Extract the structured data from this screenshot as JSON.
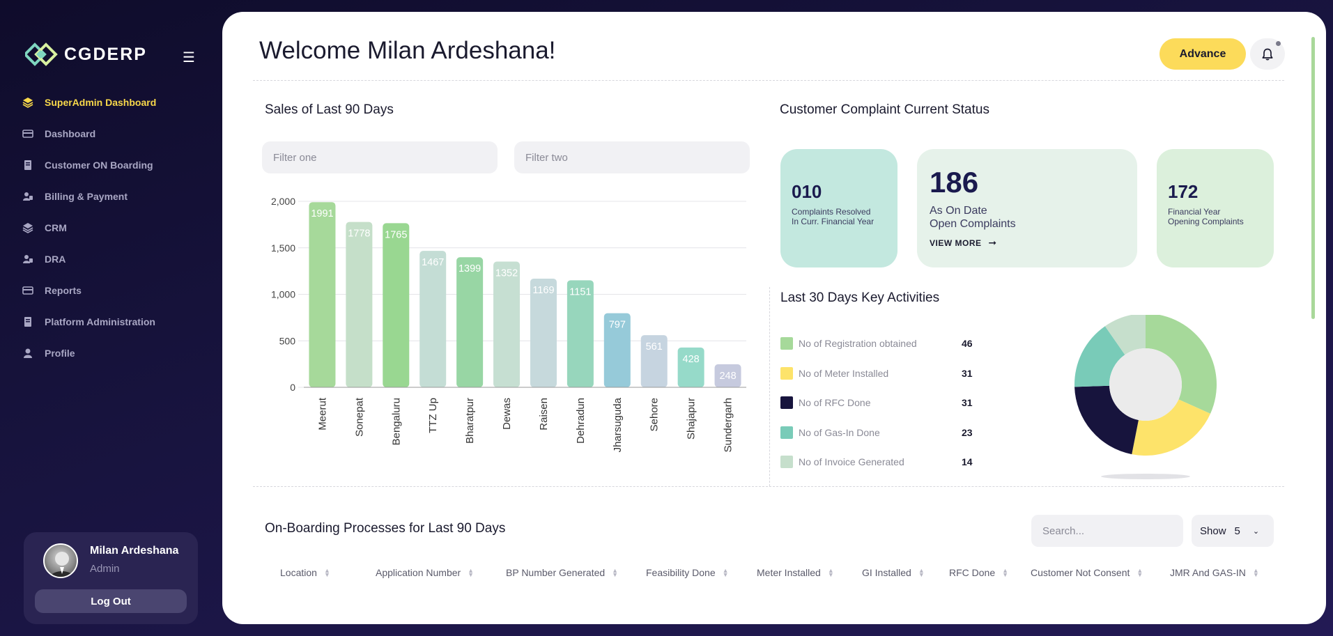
{
  "brand": {
    "name": "CGDERP"
  },
  "sidebar": {
    "items": [
      {
        "label": "SuperAdmin Dashboard",
        "icon": "layers-icon",
        "active": true
      },
      {
        "label": "Dashboard",
        "icon": "card-icon"
      },
      {
        "label": "Customer ON Boarding",
        "icon": "book-icon"
      },
      {
        "label": "Billing & Payment",
        "icon": "user-card-icon"
      },
      {
        "label": "CRM",
        "icon": "layers-icon"
      },
      {
        "label": "DRA",
        "icon": "user-card-icon"
      },
      {
        "label": "Reports",
        "icon": "card-icon"
      },
      {
        "label": "Platform Administration",
        "icon": "book-icon"
      },
      {
        "label": "Profile",
        "icon": "person-icon"
      }
    ]
  },
  "user": {
    "name": "Milan Ardeshana",
    "role": "Admin",
    "logout_label": "Log Out"
  },
  "header": {
    "welcome": "Welcome Milan Ardeshana!",
    "advance_label": "Advance"
  },
  "sales": {
    "title": "Sales of Last 90 Days",
    "filter_one_placeholder": "Filter one",
    "filter_two_placeholder": "Filter two"
  },
  "chart_data": {
    "type": "bar",
    "title": "Sales of Last 90 Days",
    "xlabel": "",
    "ylabel": "",
    "ylim": [
      0,
      2000
    ],
    "yticks": [
      "2,000",
      "1,500",
      "1,000",
      "500",
      "0"
    ],
    "ytick_values": [
      2000,
      1500,
      1000,
      500,
      0
    ],
    "categories": [
      "Meerut",
      "Sonepat",
      "Bengaluru",
      "TTZ Up",
      "Bharatpur",
      "Dewas",
      "Raisen",
      "Dehradun",
      "Jharsuguda",
      "Sehore",
      "Shajapur",
      "Sundergarh"
    ],
    "values": [
      1991,
      1778,
      1765,
      1467,
      1399,
      1352,
      1169,
      1151,
      797,
      561,
      428,
      248
    ],
    "colors": [
      "#a6d99a",
      "#c5dfc9",
      "#99d791",
      "#c4ddd5",
      "#98d6a4",
      "#c6dfd2",
      "#c6d9dc",
      "#97d6bc",
      "#96cad9",
      "#c6d4e0",
      "#96dac9",
      "#c6cade"
    ]
  },
  "complaints": {
    "title": "Customer Complaint Current Status",
    "resolved": {
      "value": "010",
      "label_line1": "Complaints Resolved",
      "label_line2": "In Curr. Financial Year"
    },
    "open": {
      "value": "186",
      "label_line1": "As On Date",
      "label_line2": "Open Complaints",
      "link": "VIEW MORE"
    },
    "opening": {
      "value": "172",
      "label_line1": "Financial Year",
      "label_line2": "Opening Complaints"
    }
  },
  "activities": {
    "title": "Last 30 Days Key Activities",
    "items": [
      {
        "label": "No of Registration obtained",
        "value": "46",
        "color": "#a6d99a"
      },
      {
        "label": "No of Meter Installed",
        "value": "31",
        "color": "#fde36a"
      },
      {
        "label": "No of RFC Done",
        "value": "31",
        "color": "#17143d"
      },
      {
        "label": "No of Gas-In Done",
        "value": "23",
        "color": "#79cbb8"
      },
      {
        "label": "No of Invoice Generated",
        "value": "14",
        "color": "#c6dfcc"
      }
    ]
  },
  "onboarding": {
    "title": "On-Boarding Processes for Last 90 Days",
    "search_placeholder": "Search...",
    "show_label": "Show",
    "show_value": "5",
    "columns": [
      "Location",
      "Application Number",
      "BP Number Generated",
      "Feasibility Done",
      "Meter Installed",
      "GI Installed",
      "RFC Done",
      "Customer Not Consent",
      "JMR And GAS-IN"
    ]
  }
}
